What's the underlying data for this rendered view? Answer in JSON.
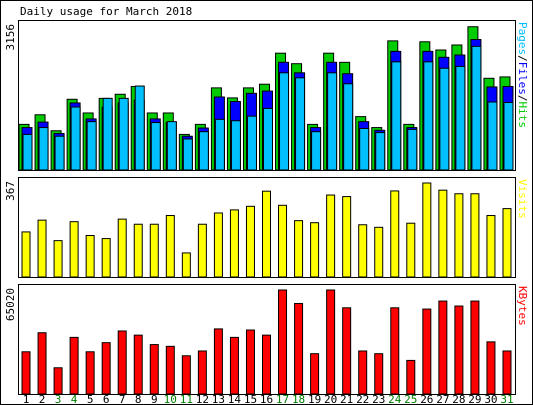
{
  "chart_data": {
    "type": "bar",
    "title": "Daily usage for March 2018",
    "categories": [
      "1",
      "2",
      "3",
      "4",
      "5",
      "6",
      "7",
      "8",
      "9",
      "10",
      "11",
      "12",
      "13",
      "14",
      "15",
      "16",
      "17",
      "18",
      "19",
      "20",
      "21",
      "22",
      "23",
      "24",
      "25",
      "26",
      "27",
      "28",
      "29",
      "30",
      "31"
    ],
    "weekend_days": [
      "3",
      "4",
      "10",
      "11",
      "17",
      "18",
      "24",
      "25",
      "31"
    ],
    "panels": [
      {
        "name": "pages-files-hits",
        "max_label": "3156",
        "ylim": [
          0,
          3156
        ],
        "legend": {
          "pages": "Pages",
          "sep1": "/",
          "files": "Files",
          "sep2": "/",
          "hits": "Hits"
        },
        "series": [
          {
            "name": "Hits",
            "color": "#00cc00",
            "values": [
              1000,
              1210,
              860,
              1550,
              1250,
              1570,
              1660,
              1830,
              1250,
              1250,
              780,
              1000,
              1800,
              1580,
              1800,
              1880,
              2560,
              2330,
              1000,
              2560,
              2360,
              1170,
              930,
              2830,
              1000,
              2810,
              2630,
              2740,
              3140,
              2010,
              2040
            ]
          },
          {
            "name": "Files",
            "color": "#0000ff",
            "values": [
              930,
              1050,
              800,
              1470,
              1120,
              1380,
              1470,
              1530,
              1120,
              1040,
              740,
              920,
              1600,
              1500,
              1680,
              1730,
              2360,
              2130,
              930,
              2360,
              2110,
              1060,
              870,
              2600,
              930,
              2600,
              2470,
              2520,
              2860,
              1820,
              1830
            ]
          },
          {
            "name": "Pages",
            "color": "#00bfff",
            "values": [
              780,
              930,
              740,
              1380,
              1060,
              1570,
              1570,
              1840,
              1040,
              1060,
              680,
              840,
              1110,
              1080,
              1180,
              1350,
              2130,
              2020,
              840,
              2130,
              1890,
              910,
              820,
              2370,
              890,
              2370,
              2230,
              2270,
              2710,
              1490,
              1480
            ]
          }
        ]
      },
      {
        "name": "visits",
        "max_label": "367",
        "ylim": [
          0,
          367
        ],
        "legend": {
          "visits": "Visits"
        },
        "series": [
          {
            "name": "Visits",
            "color": "#ffff00",
            "values": [
              176,
              222,
              142,
              216,
              162,
              150,
              226,
              206,
              206,
              240,
              94,
              206,
              250,
              262,
              276,
              335,
              280,
              220,
              212,
              320,
              314,
              204,
              194,
              336,
              210,
              367,
              339,
              325,
              325,
              240,
              267
            ]
          }
        ]
      },
      {
        "name": "kbytes",
        "max_label": "65020",
        "ylim": [
          0,
          65020
        ],
        "legend": {
          "kbytes": "KBytes"
        },
        "series": [
          {
            "name": "KBytes",
            "color": "#ff0000",
            "values": [
              26400,
              38300,
              16400,
              35400,
              26400,
              32100,
              39400,
              36800,
              30900,
              29800,
              23900,
              26900,
              40700,
              35400,
              40000,
              36800,
              65020,
              56600,
              25200,
              65020,
              53900,
              26900,
              25200,
              53900,
              21000,
              53100,
              58100,
              55000,
              58100,
              32600,
              26900
            ]
          }
        ]
      }
    ]
  },
  "colors": {
    "frame_bg": "#ffffff",
    "border": "#000000",
    "day_weekday": "#000000",
    "day_weekend": "#008000"
  }
}
